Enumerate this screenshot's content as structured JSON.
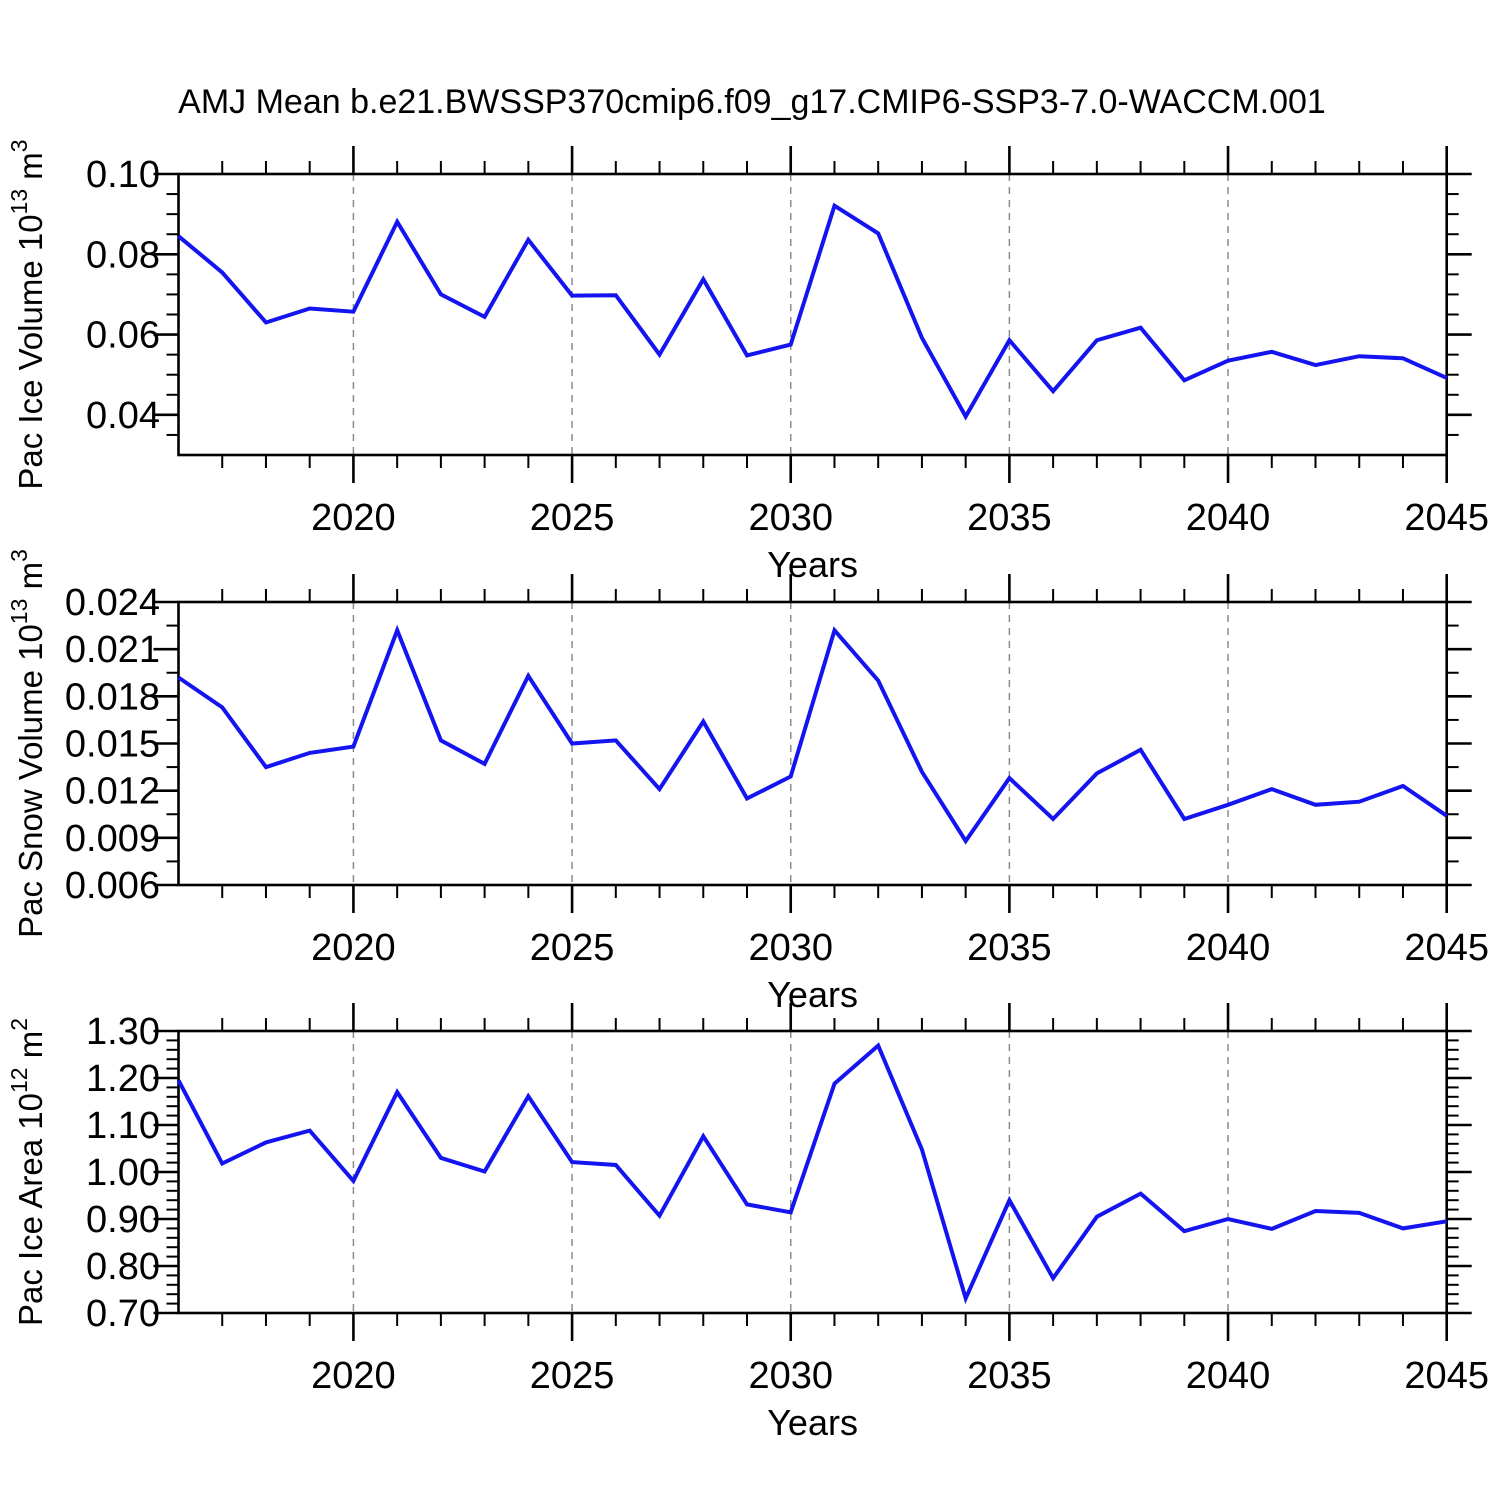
{
  "figure": {
    "title": "AMJ Mean b.e21.BWSSP370cmip6.f09_g17.CMIP6-SSP3-7.0-WACCM.001",
    "background": "#ffffff",
    "line_color": "#1414f0",
    "grid_color": "#8c8c8c",
    "axis_color": "#000000"
  },
  "chart_data": [
    {
      "type": "line",
      "title": "AMJ Mean b.e21.BWSSP370cmip6.f09_g17.CMIP6-SSP3-7.0-WACCM.001",
      "xlabel": "Years",
      "ylabel": "Pac Ice Volume 10^13 m^3",
      "ylabel_parts": [
        [
          "t",
          "Pac Ice Volume 10"
        ],
        [
          "s",
          "13"
        ],
        [
          "t",
          " m"
        ],
        [
          "s",
          "3"
        ]
      ],
      "x": [
        2016,
        2017,
        2018,
        2019,
        2020,
        2021,
        2022,
        2023,
        2024,
        2025,
        2026,
        2027,
        2028,
        2029,
        2030,
        2031,
        2032,
        2033,
        2034,
        2035,
        2036,
        2037,
        2038,
        2039,
        2040,
        2041,
        2042,
        2043,
        2044,
        2045
      ],
      "values": [
        0.0845,
        0.0755,
        0.063,
        0.0665,
        0.0657,
        0.0881,
        0.07,
        0.0644,
        0.0836,
        0.0697,
        0.0698,
        0.055,
        0.0738,
        0.0548,
        0.0575,
        0.0921,
        0.0852,
        0.0592,
        0.0396,
        0.0586,
        0.0459,
        0.0586,
        0.0617,
        0.0486,
        0.0535,
        0.0557,
        0.0524,
        0.0546,
        0.0541,
        0.0492
      ],
      "xlim": [
        2016,
        2045
      ],
      "ylim": [
        0.03,
        0.1
      ],
      "xticks": [
        2020,
        2025,
        2030,
        2035,
        2040,
        2045
      ],
      "xtick_labels": [
        "2020",
        "2025",
        "2030",
        "2035",
        "2040",
        "2045"
      ],
      "yticks": [
        0.04,
        0.06,
        0.08,
        0.1
      ],
      "ytick_labels": [
        "0.04",
        "0.06",
        "0.08",
        "0.10"
      ],
      "y_minor_step": 0.005,
      "x_minor_step": 1,
      "grid_x": [
        2020,
        2025,
        2030,
        2035,
        2040
      ],
      "grid_style": "dashed-vertical",
      "legend": "none"
    },
    {
      "type": "line",
      "title": "",
      "xlabel": "Years",
      "ylabel": "Pac Snow Volume 10^13 m^3",
      "ylabel_parts": [
        [
          "t",
          "Pac Snow Volume 10"
        ],
        [
          "s",
          "13"
        ],
        [
          "t",
          " m"
        ],
        [
          "s",
          "3"
        ]
      ],
      "x": [
        2016,
        2017,
        2018,
        2019,
        2020,
        2021,
        2022,
        2023,
        2024,
        2025,
        2026,
        2027,
        2028,
        2029,
        2030,
        2031,
        2032,
        2033,
        2034,
        2035,
        2036,
        2037,
        2038,
        2039,
        2040,
        2041,
        2042,
        2043,
        2044,
        2045
      ],
      "values": [
        0.0192,
        0.0173,
        0.0135,
        0.0144,
        0.0148,
        0.0222,
        0.0152,
        0.0137,
        0.0193,
        0.015,
        0.0152,
        0.0121,
        0.0164,
        0.0115,
        0.0129,
        0.0222,
        0.019,
        0.0132,
        0.0088,
        0.0128,
        0.0102,
        0.0131,
        0.0146,
        0.0102,
        0.0111,
        0.0121,
        0.0111,
        0.0113,
        0.0123,
        0.0104
      ],
      "xlim": [
        2016,
        2045
      ],
      "ylim": [
        0.006,
        0.024
      ],
      "xticks": [
        2020,
        2025,
        2030,
        2035,
        2040,
        2045
      ],
      "xtick_labels": [
        "2020",
        "2025",
        "2030",
        "2035",
        "2040",
        "2045"
      ],
      "yticks": [
        0.006,
        0.009,
        0.012,
        0.015,
        0.018,
        0.021,
        0.024
      ],
      "ytick_labels": [
        "0.006",
        "0.009",
        "0.012",
        "0.015",
        "0.018",
        "0.021",
        "0.024"
      ],
      "y_minor_step": 0.0015,
      "x_minor_step": 1,
      "grid_x": [
        2020,
        2025,
        2030,
        2035,
        2040
      ],
      "grid_style": "dashed-vertical",
      "legend": "none"
    },
    {
      "type": "line",
      "title": "",
      "xlabel": "Years",
      "ylabel": "Pac Ice Area 10^12 m^2",
      "ylabel_parts": [
        [
          "t",
          "Pac Ice Area 10"
        ],
        [
          "s",
          "12"
        ],
        [
          "t",
          " m"
        ],
        [
          "s",
          "2"
        ]
      ],
      "x": [
        2016,
        2017,
        2018,
        2019,
        2020,
        2021,
        2022,
        2023,
        2024,
        2025,
        2026,
        2027,
        2028,
        2029,
        2030,
        2031,
        2032,
        2033,
        2034,
        2035,
        2036,
        2037,
        2038,
        2039,
        2040,
        2041,
        2042,
        2043,
        2044,
        2045
      ],
      "values": [
        1.195,
        1.018,
        1.063,
        1.088,
        0.981,
        1.17,
        1.03,
        1.001,
        1.161,
        1.021,
        1.015,
        0.907,
        1.076,
        0.931,
        0.914,
        1.188,
        1.269,
        1.048,
        0.731,
        0.94,
        0.774,
        0.905,
        0.954,
        0.874,
        0.9,
        0.879,
        0.917,
        0.913,
        0.88,
        0.895
      ],
      "xlim": [
        2016,
        2045
      ],
      "ylim": [
        0.7,
        1.3
      ],
      "xticks": [
        2020,
        2025,
        2030,
        2035,
        2040,
        2045
      ],
      "xtick_labels": [
        "2020",
        "2025",
        "2030",
        "2035",
        "2040",
        "2045"
      ],
      "yticks": [
        0.7,
        0.8,
        0.9,
        1.0,
        1.1,
        1.2,
        1.3
      ],
      "ytick_labels": [
        "0.70",
        "0.80",
        "0.90",
        "1.00",
        "1.10",
        "1.20",
        "1.30"
      ],
      "y_minor_step": 0.02,
      "x_minor_step": 1,
      "grid_x": [
        2020,
        2025,
        2030,
        2035,
        2040
      ],
      "grid_style": "dashed-vertical",
      "legend": "none"
    }
  ]
}
